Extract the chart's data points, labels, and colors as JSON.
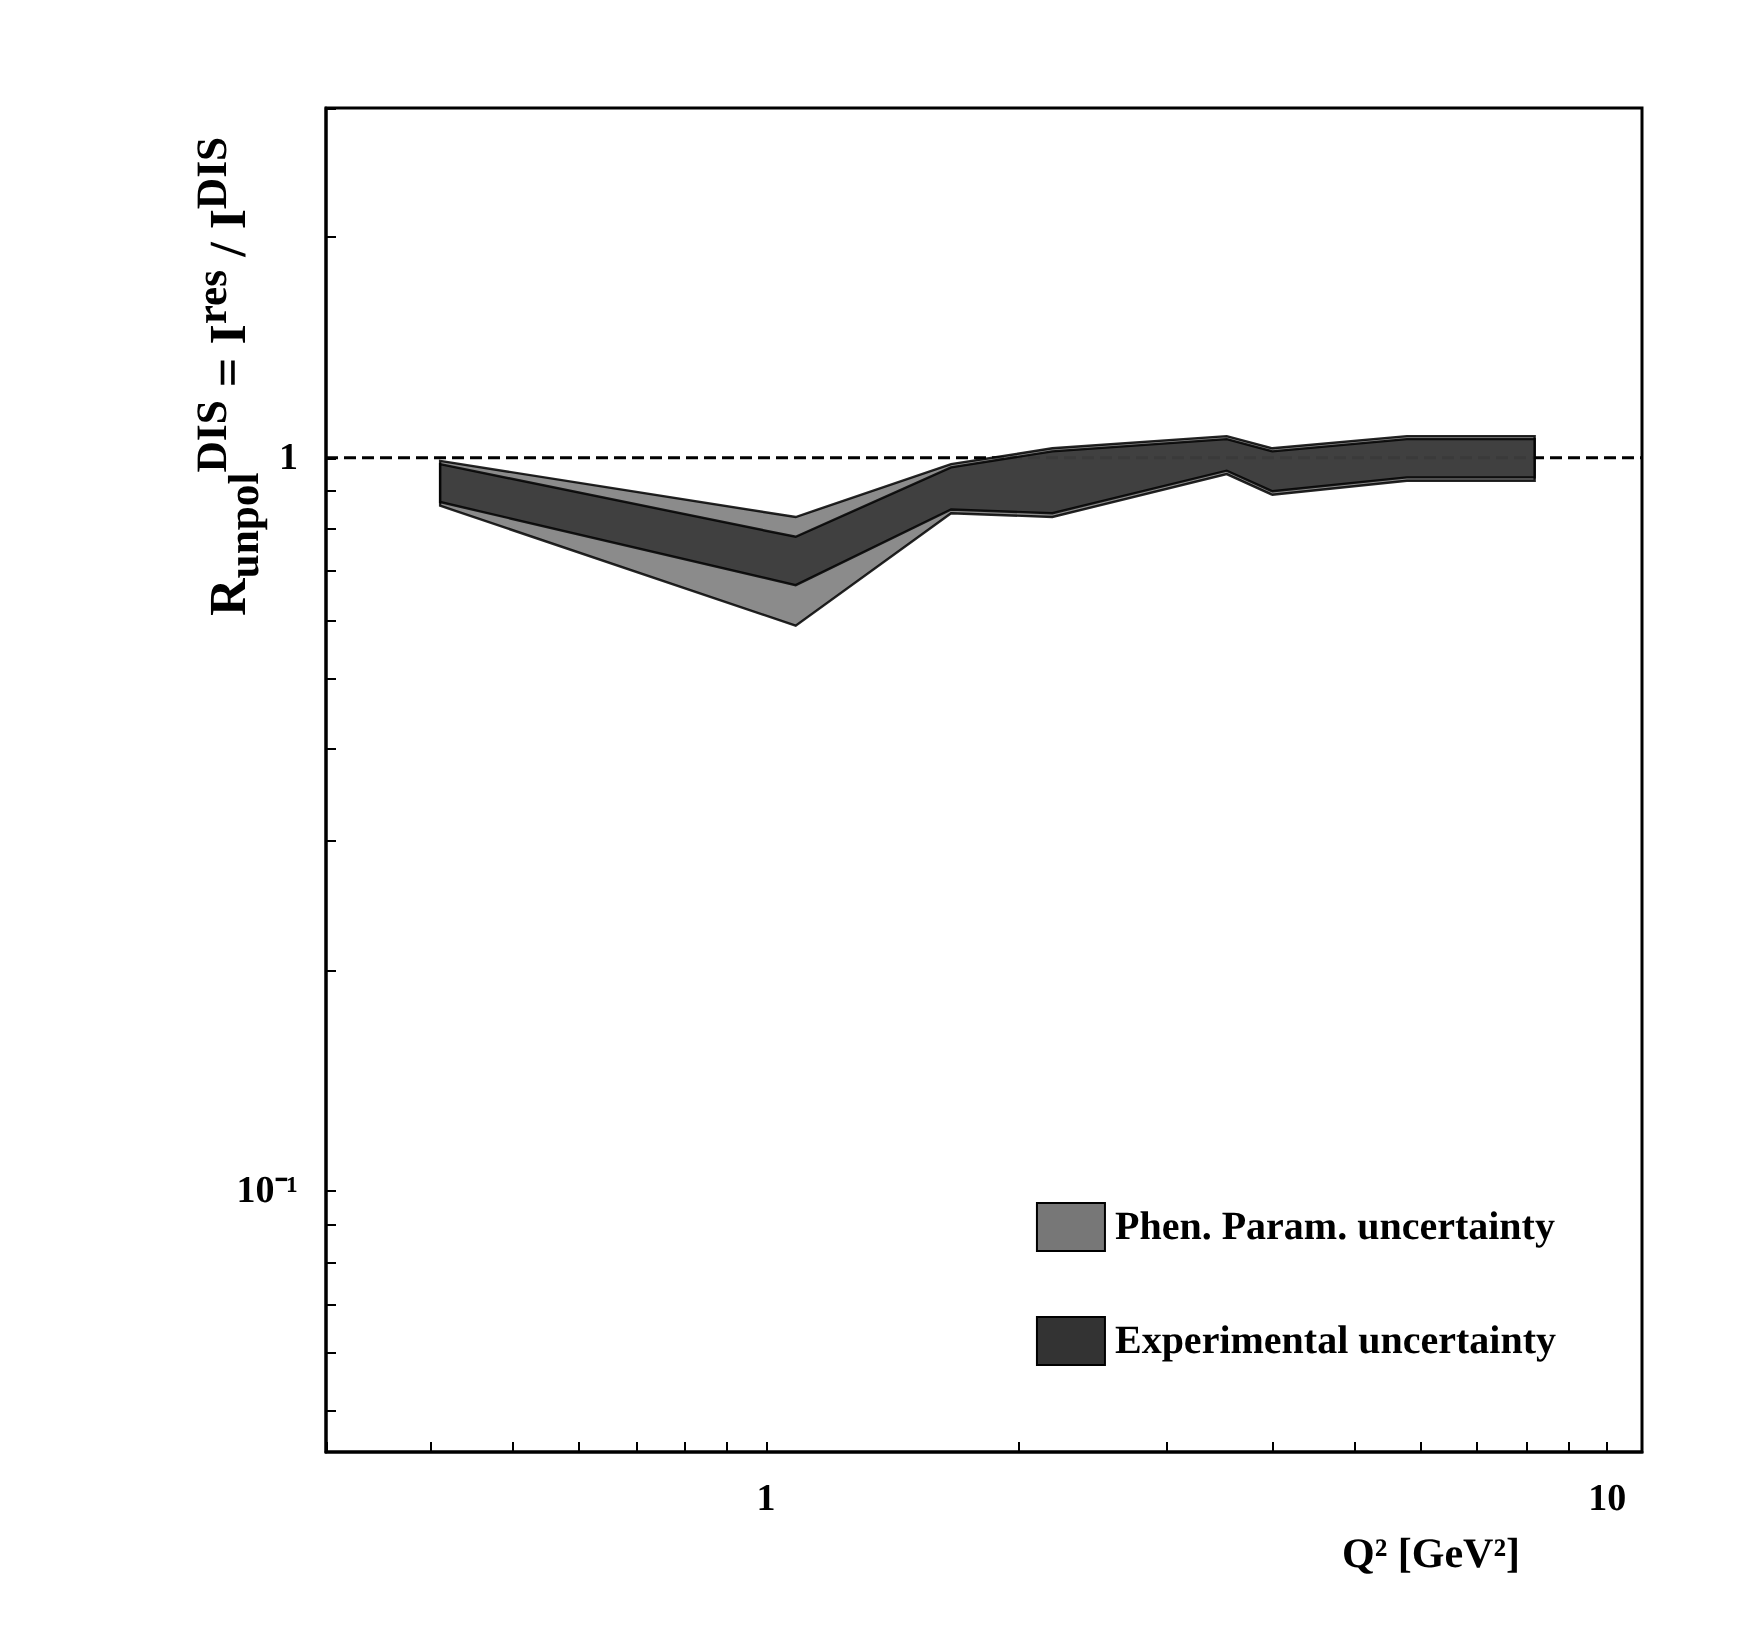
{
  "chart_data": {
    "type": "area",
    "xlabel": "Q² [GeV²]",
    "ylabel": "R$_{unpol}$$^{DIS}$ = I$^{res}$ / I$^{DIS}$",
    "log": "xy",
    "xlim": [
      0.3,
      11
    ],
    "ylim": [
      0.044,
      3
    ],
    "xticks": [
      {
        "value": 0.3,
        "label": null
      },
      {
        "value": 0.4,
        "label": null
      },
      {
        "value": 0.5,
        "label": null
      },
      {
        "value": 0.6,
        "label": null
      },
      {
        "value": 0.7,
        "label": null
      },
      {
        "value": 0.8,
        "label": null
      },
      {
        "value": 0.9,
        "label": null
      },
      1,
      {
        "value": 2,
        "label": null
      },
      {
        "value": 3,
        "label": null
      },
      {
        "value": 4,
        "label": null
      },
      {
        "value": 5,
        "label": null
      },
      {
        "value": 6,
        "label": null
      },
      {
        "value": 7,
        "label": null
      },
      {
        "value": 8,
        "label": null
      },
      {
        "value": 9,
        "label": null
      },
      10
    ],
    "yticks": [
      {
        "value": 0.05,
        "label": null
      },
      {
        "value": 0.06,
        "label": null
      },
      {
        "value": 0.07,
        "label": null
      },
      {
        "value": 0.08,
        "label": null
      },
      {
        "value": 0.09,
        "label": null
      },
      {
        "value": 0.1,
        "label": "10⁻¹"
      },
      {
        "value": 0.2,
        "label": null
      },
      {
        "value": 0.3,
        "label": null
      },
      {
        "value": 0.4,
        "label": null
      },
      {
        "value": 0.5,
        "label": null
      },
      {
        "value": 0.6,
        "label": null
      },
      {
        "value": 0.7,
        "label": null
      },
      {
        "value": 0.8,
        "label": null
      },
      {
        "value": 0.9,
        "label": null
      },
      1,
      {
        "value": 2,
        "label": null
      },
      {
        "value": 3,
        "label": null
      }
    ],
    "x": [
      0.41,
      1.085,
      1.66,
      2.19,
      3.53,
      4.0,
      5.78,
      8.2
    ],
    "series": [
      {
        "name": "Phen. Param. uncertainty",
        "color": "#777777",
        "values": [
          null,
          null,
          null,
          null,
          null,
          null,
          null,
          null
        ],
        "lower": [
          0.86,
          0.59,
          0.84,
          0.83,
          0.95,
          0.89,
          0.93,
          0.93
        ],
        "upper": [
          0.99,
          0.83,
          0.98,
          1.03,
          1.07,
          1.03,
          1.07,
          1.07
        ]
      },
      {
        "name": "Experimental uncertainty",
        "color": "#333333",
        "values": [
          null,
          null,
          null,
          null,
          null,
          null,
          null,
          null
        ],
        "lower": [
          0.87,
          0.67,
          0.85,
          0.84,
          0.96,
          0.9,
          0.94,
          0.94
        ],
        "upper": [
          0.98,
          0.78,
          0.97,
          1.02,
          1.06,
          1.02,
          1.06,
          1.06
        ]
      }
    ],
    "ref_lines": [
      {
        "axis": "y",
        "value": 1,
        "line_style": "dashed",
        "color": "#000000"
      }
    ],
    "legend": "bottom right",
    "grid": false
  }
}
